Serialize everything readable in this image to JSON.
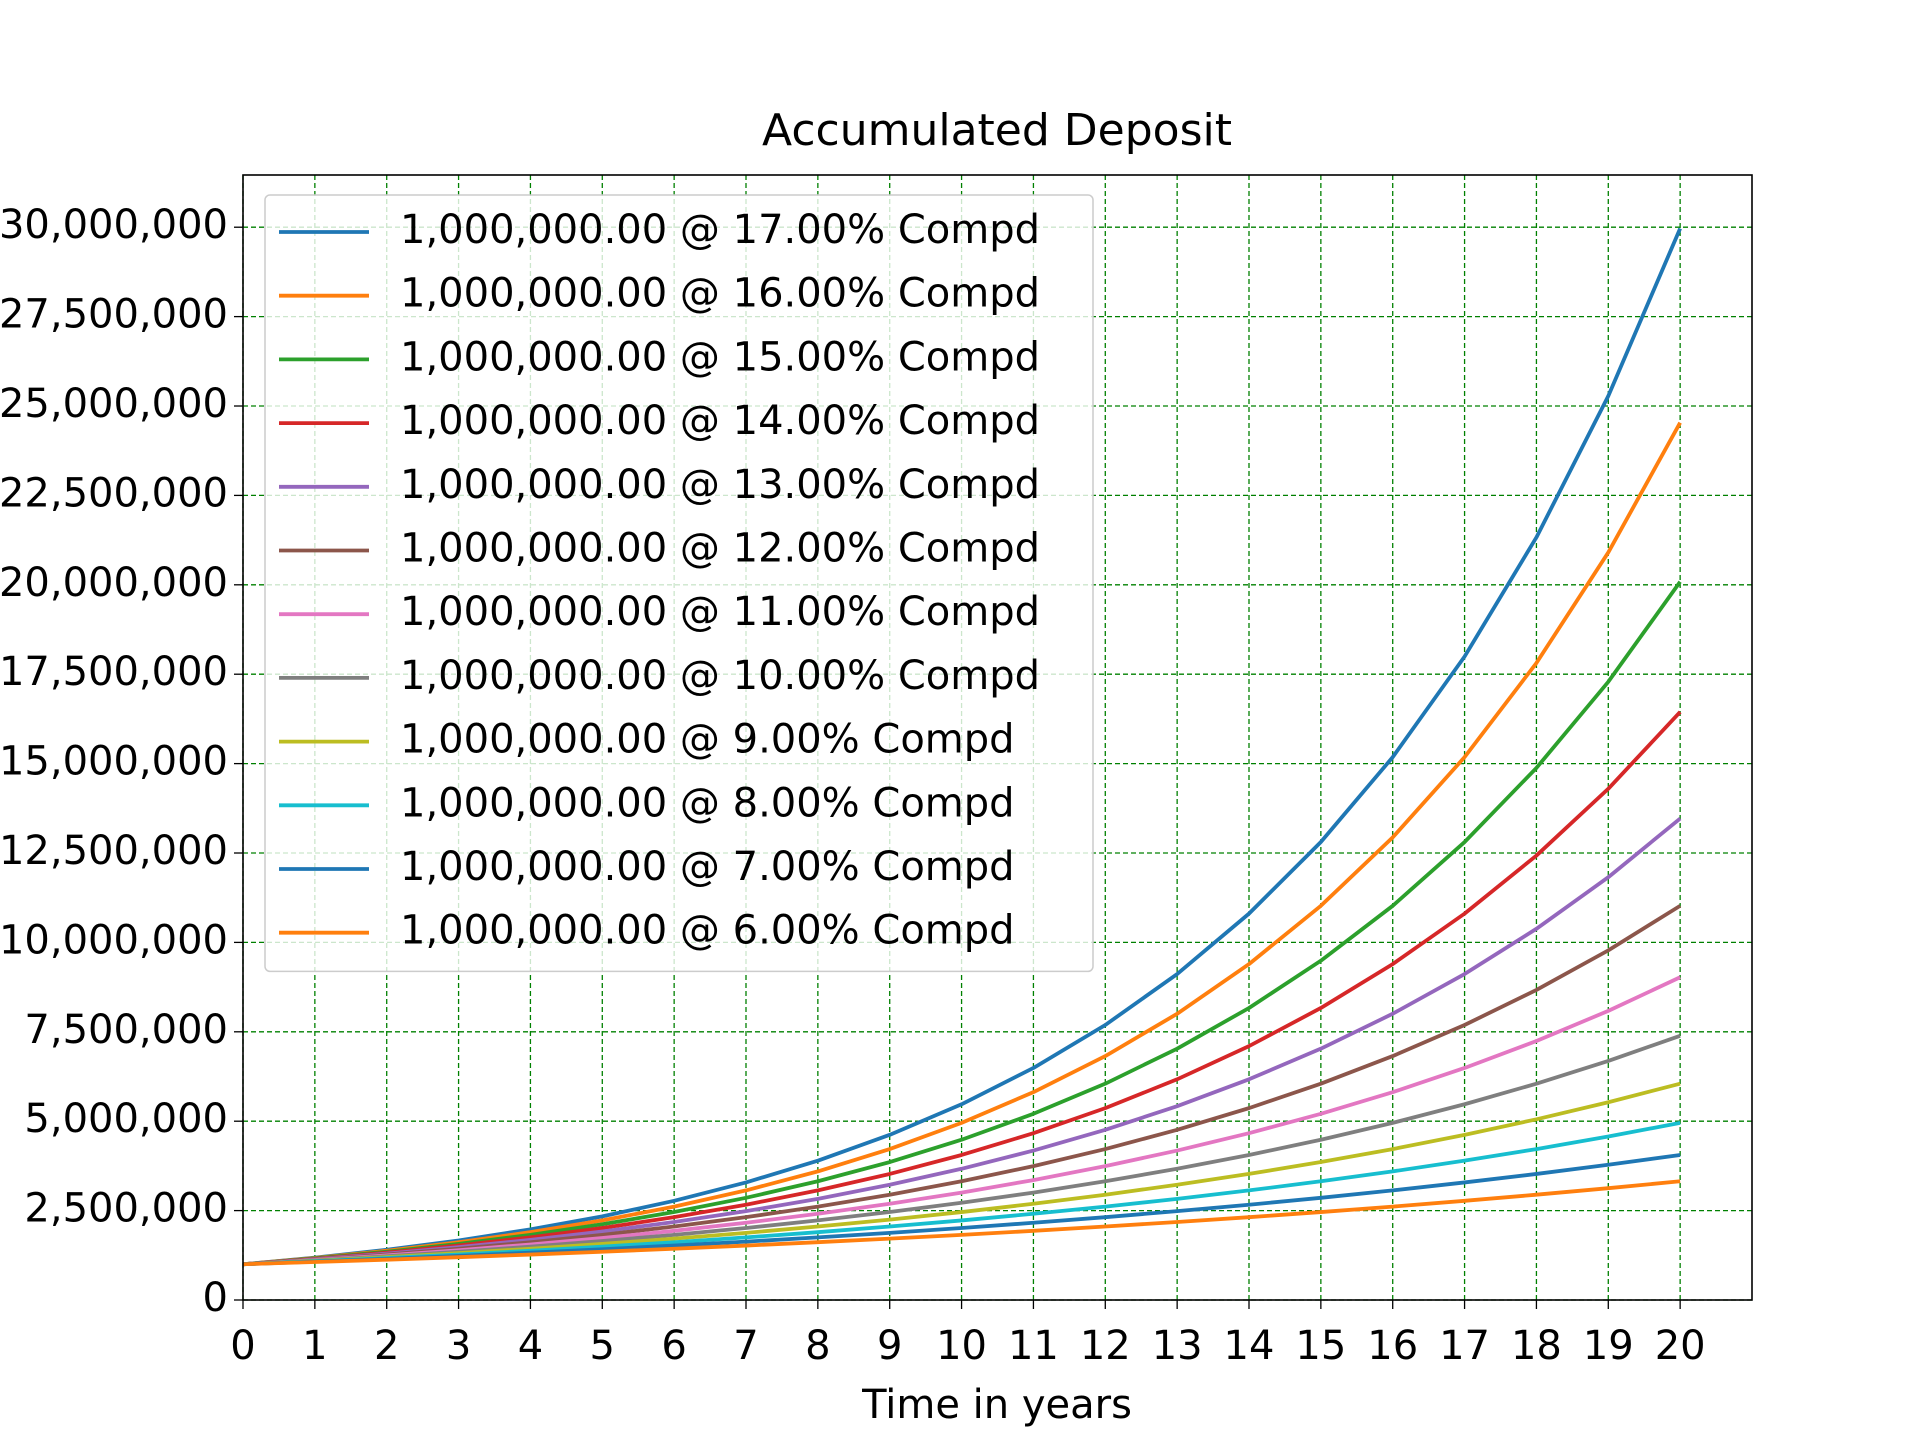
{
  "chart_data": {
    "type": "line",
    "title": "Accumulated Deposit",
    "x_label": "Time in years",
    "x": [
      0,
      1,
      2,
      3,
      4,
      5,
      6,
      7,
      8,
      9,
      10,
      11,
      12,
      13,
      14,
      15,
      16,
      17,
      18,
      19,
      20
    ],
    "xlim": [
      0,
      21
    ],
    "xticks": [
      0,
      1,
      2,
      3,
      4,
      5,
      6,
      7,
      8,
      9,
      10,
      11,
      12,
      13,
      14,
      15,
      16,
      17,
      18,
      19,
      20
    ],
    "ylim": [
      0,
      31460000
    ],
    "yticks": [
      0,
      {
        "value": 2500000,
        "label": "2,500,000"
      },
      {
        "value": 5000000,
        "label": "5,000,000"
      },
      {
        "value": 7500000,
        "label": "7,500,000"
      },
      {
        "value": 10000000,
        "label": "10,000,000"
      },
      {
        "value": 12500000,
        "label": "12,500,000"
      },
      {
        "value": 15000000,
        "label": "15,000,000"
      },
      {
        "value": 17500000,
        "label": "17,500,000"
      },
      {
        "value": 20000000,
        "label": "20,000,000"
      },
      {
        "value": 22500000,
        "label": "22,500,000"
      },
      {
        "value": 25000000,
        "label": "25,000,000"
      },
      {
        "value": 27500000,
        "label": "27,500,000"
      },
      {
        "value": 30000000,
        "label": "30,000,000"
      }
    ],
    "grid": true,
    "grid_color": "#008000",
    "legend": "upper left",
    "series": [
      {
        "name": "1,000,000.00 @ 17.00% Compd",
        "color": "#1f77b4",
        "values": [
          1000000,
          1185300,
          1404900,
          1665300,
          1973900,
          2339600,
          2773200,
          3287100,
          3896200,
          4618200,
          5473900,
          6488300,
          7690600,
          9115700,
          10804900,
          12807100,
          15180300,
          17993300,
          21327600,
          25279700,
          29964100
        ]
      },
      {
        "name": "1,000,000.00 @ 16.00% Compd",
        "color": "#ff7f0e",
        "values": [
          1000000,
          1173500,
          1377100,
          1616100,
          1896500,
          2225500,
          2611700,
          3064900,
          3596600,
          4220700,
          4953000,
          5812400,
          6821000,
          8004500,
          9393300,
          11023200,
          12935800,
          15180300,
          17814300,
          20905200,
          24532500
        ]
      },
      {
        "name": "1,000,000.00 @ 15.00% Compd",
        "color": "#2ca02c",
        "values": [
          1000000,
          1161800,
          1349900,
          1568300,
          1822100,
          2117000,
          2459600,
          2857700,
          3320100,
          3857400,
          4481700,
          5207000,
          6049600,
          7028700,
          8166200,
          9487700,
          11023200,
          12807100,
          14879700,
          17287800,
          20085500
        ]
      },
      {
        "name": "1,000,000.00 @ 14.00% Compd",
        "color": "#d62728",
        "values": [
          1000000,
          1150300,
          1323100,
          1522000,
          1750700,
          2013800,
          2316400,
          2664500,
          3064900,
          3525400,
          4055200,
          4664600,
          5365600,
          6171900,
          7099300,
          8166200,
          9393300,
          10804900,
          12428600,
          14296300,
          16444600
        ]
      },
      {
        "name": "1,000,000.00 @ 13.00% Compd",
        "color": "#9467bd",
        "values": [
          1000000,
          1138800,
          1296900,
          1477000,
          1682000,
          1915500,
          2181500,
          2484300,
          2829200,
          3222000,
          3669300,
          4178700,
          4758800,
          5419500,
          6171900,
          7028700,
          8004500,
          9115700,
          10381200,
          11822400,
          13463700
        ]
      },
      {
        "name": "1,000,000.00 @ 12.00% Compd",
        "color": "#8c564b",
        "values": [
          1000000,
          1127500,
          1271200,
          1433300,
          1616100,
          1822100,
          2054400,
          2316400,
          2611700,
          2944700,
          3320100,
          3743400,
          4220700,
          4758800,
          5365600,
          6049600,
          6821000,
          7690600,
          8671100,
          9776700,
          11023200
        ]
      },
      {
        "name": "1,000,000.00 @ 11.00% Compd",
        "color": "#e377c2",
        "values": [
          1000000,
          1116300,
          1246100,
          1391000,
          1552700,
          1733300,
          1934800,
          2159800,
          2410900,
          2691200,
          3004200,
          3353500,
          3743400,
          4178700,
          4664600,
          5207000,
          5812400,
          6488300,
          7242700,
          8084900,
          9025000
        ]
      },
      {
        "name": "1,000,000.00 @ 10.00% Compd",
        "color": "#7f7f7f",
        "values": [
          1000000,
          1105200,
          1221400,
          1349900,
          1491800,
          1648700,
          1822100,
          2013800,
          2225500,
          2459600,
          2718300,
          3004200,
          3320100,
          3669300,
          4055200,
          4481700,
          4953000,
          5473900,
          6049600,
          6685900,
          7389100
        ]
      },
      {
        "name": "1,000,000.00 @ 9.00% Compd",
        "color": "#bcbd22",
        "values": [
          1000000,
          1094200,
          1197200,
          1310000,
          1433300,
          1568300,
          1716000,
          1877600,
          2054400,
          2247900,
          2459600,
          2691200,
          2944700,
          3222000,
          3525400,
          3857400,
          4220700,
          4618200,
          5053100,
          5529000,
          6049600
        ]
      },
      {
        "name": "1,000,000.00 @ 8.00% Compd",
        "color": "#17becf",
        "values": [
          1000000,
          1083300,
          1173500,
          1271200,
          1377100,
          1491800,
          1616100,
          1750700,
          1896500,
          2054400,
          2225500,
          2410900,
          2611700,
          2829200,
          3064900,
          3320100,
          3596600,
          3896200,
          4220700,
          4572200,
          4953000
        ]
      },
      {
        "name": "1,000,000.00 @ 7.00% Compd",
        "color": "#1f77b4",
        "values": [
          1000000,
          1072500,
          1150300,
          1233700,
          1323100,
          1419100,
          1522000,
          1632300,
          1750700,
          1877600,
          2013800,
          2159800,
          2316400,
          2484300,
          2664500,
          2857700,
          3064900,
          3287100,
          3525400,
          3781000,
          4055200
        ]
      },
      {
        "name": "1,000,000.00 @ 6.00% Compd",
        "color": "#ff7f0e",
        "values": [
          1000000,
          1061800,
          1127500,
          1197200,
          1271200,
          1349900,
          1433300,
          1522000,
          1616100,
          1716000,
          1822100,
          1934800,
          2054400,
          2181500,
          2316400,
          2459600,
          2611700,
          2773200,
          2944700,
          3126800,
          3320100
        ]
      }
    ]
  }
}
